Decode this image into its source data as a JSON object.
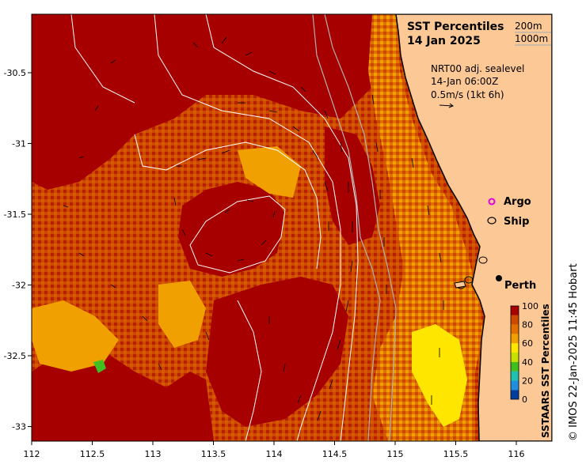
{
  "title": {
    "line1": "SST Percentiles",
    "line2": "14 Jan 2025"
  },
  "isobaths": {
    "shallow": "200m",
    "deep": "1000m"
  },
  "currents": {
    "line1": "NRT00 adj. sealevel",
    "line2": "14-Jan 06:00Z",
    "line3": "0.5m/s (1kt 6h)"
  },
  "legend": {
    "argo": "Argo",
    "ship": "Ship"
  },
  "places": {
    "perth": "Perth"
  },
  "colorbar": {
    "title": "SSTAARS SST Percentiles",
    "ticks": [
      "100",
      "80",
      "60",
      "40",
      "20",
      "0"
    ],
    "colors": [
      "#003f9f",
      "#1f8fe0",
      "#20c0b0",
      "#40c020",
      "#c8e000",
      "#ffe600",
      "#f0a000",
      "#e07000",
      "#cc4a00",
      "#a60000"
    ]
  },
  "axes": {
    "x_ticks": [
      "112",
      "112.5",
      "113",
      "113.5",
      "114",
      "114.5",
      "115",
      "115.5",
      "116"
    ],
    "y_ticks": [
      "-30.5",
      "-31",
      "-31.5",
      "-32",
      "-32.5",
      "-33"
    ]
  },
  "credit": "© IMOS 22-Jan-2025 11:45 Hobart",
  "colors": {
    "land": "#fcc896",
    "hot": "#a60000",
    "warm": "#cc4a00",
    "mid": "#e07000",
    "light": "#f0a000",
    "yellow": "#ffe600",
    "green": "#40c020"
  }
}
